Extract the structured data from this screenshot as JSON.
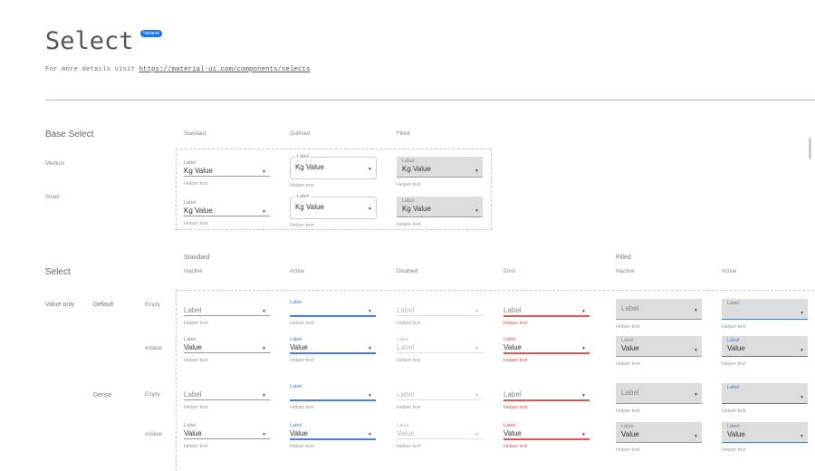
{
  "header": {
    "title": "Select",
    "badge": "Variants",
    "subtitle_prefix": "For more details visit ",
    "link": "https://material-ui.com/components/selects"
  },
  "base_select": {
    "title": "Base Select",
    "columns": [
      "Standard",
      "Outlined",
      "Filled"
    ],
    "rows": [
      {
        "size": "Medium",
        "label": "Label",
        "prefix": "Kg",
        "value": "Value",
        "helper": "Helper text"
      },
      {
        "size": "Small",
        "label": "Label",
        "prefix": "Kg",
        "value": "Value",
        "helper": "Helper text"
      }
    ]
  },
  "select": {
    "title": "Select",
    "groups": [
      "Standard",
      "Filled"
    ],
    "columns": [
      {
        "variant": "standard",
        "state": "Inactive"
      },
      {
        "variant": "standard",
        "state": "Active"
      },
      {
        "variant": "standard",
        "state": "Disabled"
      },
      {
        "variant": "standard",
        "state": "Error"
      },
      {
        "variant": "filled",
        "state": "Inactive"
      },
      {
        "variant": "filled",
        "state": "Active"
      }
    ],
    "row_group": "Value only",
    "rows": [
      {
        "density": "Default",
        "kind": "Empty",
        "cells": [
          {
            "placeholder": "Label",
            "helper": "Helper text"
          },
          {
            "label": "Label",
            "helper": "Helper text"
          },
          {
            "placeholder": "Label",
            "helper": "Helper text"
          },
          {
            "placeholder": "Label",
            "helper": "Helper text"
          },
          {
            "placeholder": "Label",
            "helper": "Helper text"
          },
          {
            "label": "Label",
            "helper": "Helper text"
          }
        ]
      },
      {
        "density": "",
        "kind": "wValue",
        "cells": [
          {
            "label": "Label",
            "value": "Value",
            "helper": "Helper text"
          },
          {
            "label": "Label",
            "value": "Value",
            "helper": "Helper text"
          },
          {
            "label": "Label",
            "placeholder": "Label",
            "helper": "Helper text"
          },
          {
            "label": "Label",
            "value": "Value",
            "helper": "Helper text"
          },
          {
            "label": "Label",
            "value": "Value",
            "helper": "Helper text"
          },
          {
            "label": "Label",
            "value": "Value",
            "helper": "Helper text"
          }
        ]
      },
      {
        "density": "Dense",
        "kind": "Empty",
        "cells": [
          {
            "placeholder": "Label",
            "helper": "Helper text"
          },
          {
            "label": "Label",
            "helper": "Helper text"
          },
          {
            "placeholder": "Label",
            "helper": "Helper text"
          },
          {
            "placeholder": "Label",
            "helper": "Helper text"
          },
          {
            "placeholder": "Label",
            "helper": "Helper text"
          },
          {
            "label": "Label",
            "helper": "Helper text"
          }
        ]
      },
      {
        "density": "",
        "kind": "wValue",
        "cells": [
          {
            "label": "Label",
            "value": "Value",
            "helper": "Helper text"
          },
          {
            "label": "Label",
            "value": "Value",
            "helper": "Helper text"
          },
          {
            "label": "Label",
            "value": "Value",
            "helper": "Helper text"
          },
          {
            "label": "Label",
            "value": "Value",
            "helper": "Helper text"
          },
          {
            "label": "Label",
            "value": "Value",
            "helper": "Helper text"
          },
          {
            "label": "Label",
            "value": "Value",
            "helper": "Helper text"
          }
        ]
      }
    ]
  },
  "colors": {
    "accent": "#4a7fd4",
    "error": "#e05555",
    "badge": "#1a73e8",
    "filled_bg": "#dddddd"
  },
  "icons": {
    "dropdown": "caret-down-icon"
  }
}
